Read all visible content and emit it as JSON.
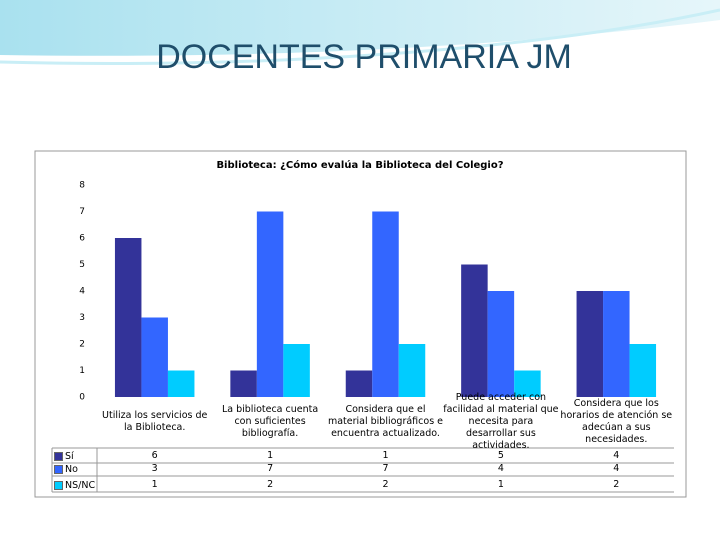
{
  "slide_title": "DOCENTES PRIMARIA JM",
  "chart_data": {
    "type": "bar",
    "title": "Biblioteca: ¿Cómo evalúa la Biblioteca del Colegio?",
    "categories": [
      "Utiliza los servicios de la Biblioteca.",
      "La biblioteca cuenta con suficientes bibliografía.",
      "Considera que el material bibliográficos e encuentra actualizado.",
      "Puede acceder con facilidad al material que necesita para desarrollar sus actividades.",
      "Considera que los horarios de atención se adecúan a sus necesidades."
    ],
    "series": [
      {
        "name": "Sí",
        "color": "#333399",
        "values": [
          6,
          1,
          1,
          5,
          4
        ]
      },
      {
        "name": "No",
        "color": "#3366ff",
        "values": [
          3,
          7,
          7,
          4,
          4
        ]
      },
      {
        "name": "NS/NC",
        "color": "#00ccff",
        "values": [
          1,
          2,
          2,
          1,
          2
        ]
      }
    ],
    "ylim": [
      0,
      8
    ],
    "yticks": [
      0,
      1,
      2,
      3,
      4,
      5,
      6,
      7,
      8
    ],
    "grid": false
  }
}
